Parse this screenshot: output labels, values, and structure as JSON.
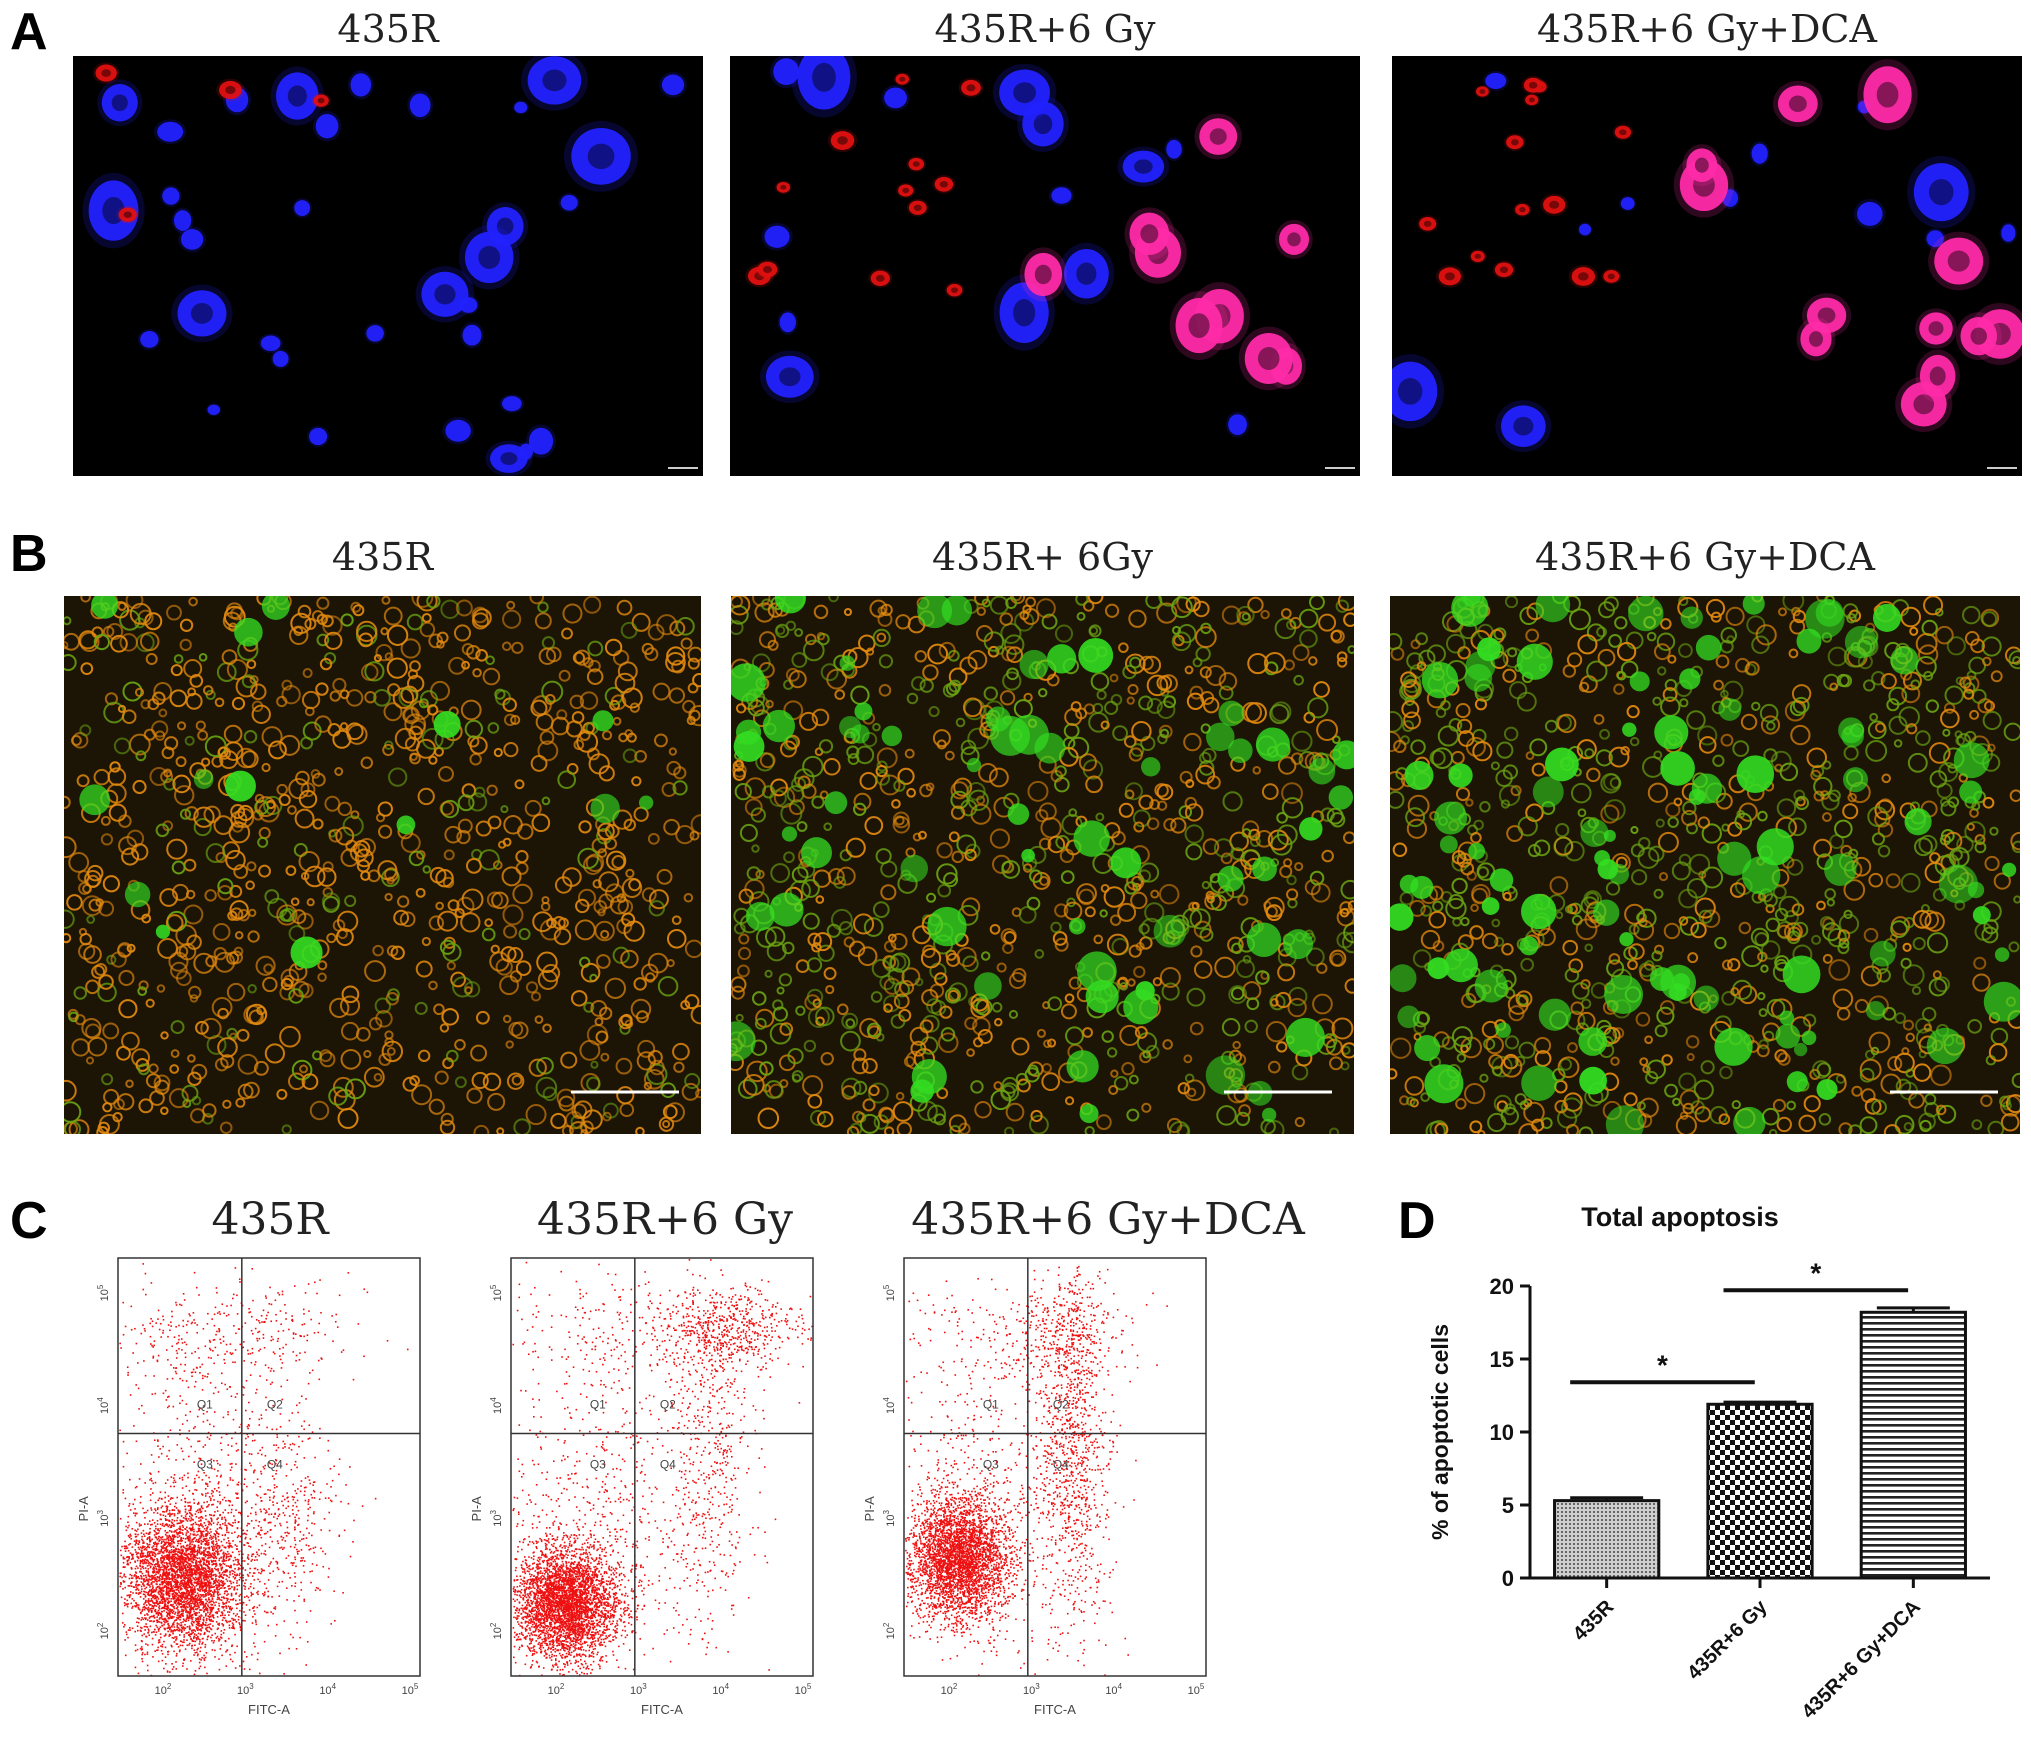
{
  "panels": {
    "a": {
      "letter": "A",
      "titles": [
        "435R",
        "435R+6 Gy",
        "435R+6 Gy+DCA"
      ]
    },
    "b": {
      "letter": "B",
      "titles": [
        "435R",
        "435R+ 6Gy",
        "435R+6 Gy+DCA"
      ]
    },
    "c": {
      "letter": "C",
      "titles": [
        "435R",
        "435R+6 Gy",
        "435R+6 Gy+DCA"
      ],
      "xlabel": "FITC-A",
      "ylabel": "PI-A",
      "quadrants": [
        "Q1",
        "Q2",
        "Q3",
        "Q4"
      ]
    },
    "d": {
      "letter": "D"
    }
  },
  "colors": {
    "dapi_blue": "#2222ff",
    "red_stain": "#e01010",
    "merge_magenta": "#ff2aa8",
    "ao_green": "#33dd22",
    "eb_orange": "#e38a10",
    "flow_dot": "#ee1111"
  },
  "chart_data": {
    "type": "bar",
    "title": "Total apoptosis",
    "ylabel": "% of apoptotic cells",
    "xlabel": "",
    "categories": [
      "435R",
      "435R+6 Gy",
      "435R+6 Gy+DCA"
    ],
    "values": [
      5.3,
      11.9,
      18.2
    ],
    "errors": [
      0.2,
      0.15,
      0.3
    ],
    "ylim": [
      0,
      20
    ],
    "yticks": [
      0,
      5,
      10,
      15,
      20
    ],
    "grid": false,
    "significance": [
      {
        "from": 0,
        "to": 1,
        "label": "*"
      },
      {
        "from": 1,
        "to": 2,
        "label": "*"
      }
    ]
  }
}
